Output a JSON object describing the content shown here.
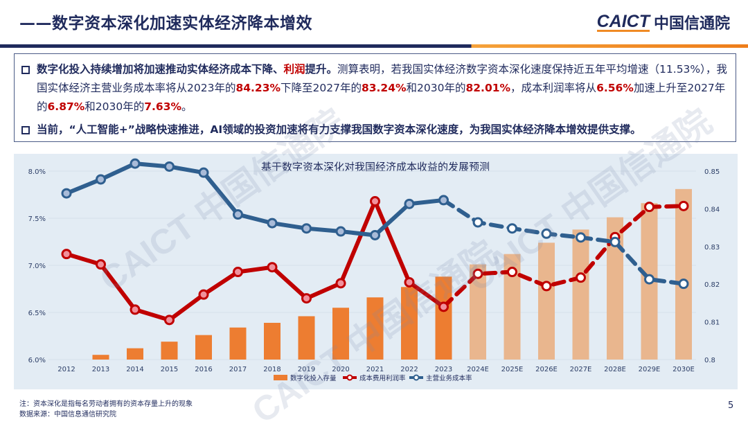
{
  "header": {
    "title": "——数字资本深化加速实体经济降本增效",
    "logo_en": "CAICT",
    "logo_cn": "中国信通院"
  },
  "summary": {
    "p1": {
      "lead": "数字化投入持续增加将加速推动实体经济成本下降、",
      "lead_red": "利润",
      "lead_end": "提升。",
      "t1": "测算表明，若我国实体经济数字资本深化速度保持近五年平均增速（11.53%），我国实体经济主营业务成本率将从2023年的",
      "v1": "84.23%",
      "t2": "下降至2027年的",
      "v2": "83.24%",
      "t3": "和2030年的",
      "v3": "82.01%",
      "t4": "，成本利润率将从",
      "v4": "6.56%",
      "t5": "加速上升至2027年的",
      "v5": "6.87%",
      "t6": "和2030年的",
      "v6": "7.63%",
      "t7": "。"
    },
    "p2": "当前，“人工智能+”战略快速推进，AI领域的投资加速将有力支撑我国数字资本深化速度，为我国实体经济降本增效提供支撑。"
  },
  "watermark": "CAICT 中国信通院",
  "chart_data": {
    "type": "bar+line",
    "title": "基于数字资本深化对我国经济成本收益的发展预测",
    "categories": [
      "2012",
      "2013",
      "2014",
      "2015",
      "2016",
      "2017",
      "2018",
      "2019",
      "2020",
      "2021",
      "2022",
      "2023",
      "2024E",
      "2025E",
      "2026E",
      "2027E",
      "2028E",
      "2029E",
      "2030E"
    ],
    "projection_start_index": 12,
    "left_axis": {
      "ticks": [
        "6.0%",
        "6.5%",
        "7.0%",
        "7.5%",
        "8.0%"
      ],
      "range": [
        6.0,
        8.0
      ]
    },
    "right_axis": {
      "ticks": [
        "0.8",
        "0.81",
        "0.82",
        "0.83",
        "0.84",
        "0.85"
      ],
      "range": [
        0.8,
        0.85
      ]
    },
    "series": [
      {
        "name": "数字化投入存量",
        "type": "bar",
        "axis": "left",
        "color": "#ed7d31",
        "projected_color": "#e9b68e",
        "values": [
          null,
          6.05,
          6.12,
          6.19,
          6.26,
          6.34,
          6.39,
          6.46,
          6.55,
          6.66,
          6.77,
          6.88,
          7.01,
          7.12,
          7.24,
          7.38,
          7.51,
          7.66,
          7.81
        ]
      },
      {
        "name": "成本费用利润率",
        "type": "line",
        "axis": "left",
        "color": "#c00000",
        "marker_fill": "#f0909c",
        "values": [
          7.12,
          7.01,
          6.53,
          6.42,
          6.69,
          6.93,
          6.98,
          6.65,
          6.81,
          7.68,
          6.82,
          6.56,
          6.91,
          6.93,
          6.78,
          6.87,
          7.3,
          7.62,
          7.63
        ]
      },
      {
        "name": "主营业务成本率",
        "type": "line",
        "axis": "right",
        "color": "#2f5f8f",
        "marker_fill": "#a9bbd8",
        "values": [
          0.8441,
          0.8478,
          0.852,
          0.8512,
          0.8496,
          0.8385,
          0.8362,
          0.8348,
          0.834,
          0.833,
          0.8413,
          0.8423,
          0.8364,
          0.8348,
          0.8334,
          0.8324,
          0.8312,
          0.8213,
          0.8201
        ]
      }
    ],
    "legend_position": "bottom"
  },
  "footer": {
    "note": "注：资本深化是指每名劳动者拥有的资本存量上升的现象",
    "source": "数据来源：中国信息通信研究院",
    "page": "5"
  }
}
